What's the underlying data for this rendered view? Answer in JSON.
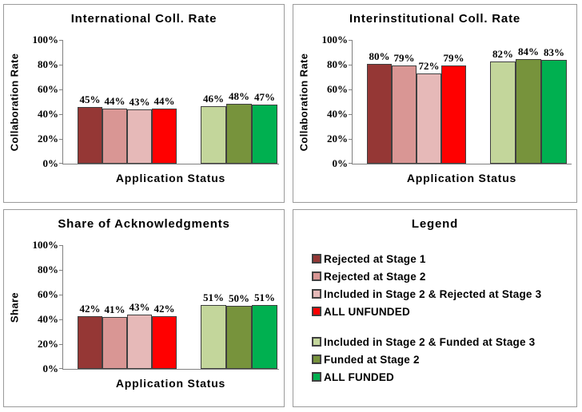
{
  "figure": {
    "background": "#FFFFFF",
    "panel_border_color": "#9B9B9B",
    "axis_color": "#808080",
    "bar_border_color": "#3F3F3F"
  },
  "legend": {
    "title": "Legend",
    "items": [
      {
        "label": "Rejected at Stage 1",
        "color": "#953735",
        "group": "unfunded"
      },
      {
        "label": "Rejected at Stage 2",
        "color": "#D99694",
        "group": "unfunded"
      },
      {
        "label": "Included in Stage 2 & Rejected at Stage 3",
        "color": "#E6B9B8",
        "group": "unfunded"
      },
      {
        "label": "ALL UNFUNDED",
        "color": "#FF0000",
        "group": "unfunded"
      },
      {
        "label": "Included in Stage 2 & Funded at Stage 3",
        "color": "#C3D69B",
        "group": "funded"
      },
      {
        "label": "Funded at Stage 2",
        "color": "#77933C",
        "group": "funded"
      },
      {
        "label": "ALL FUNDED",
        "color": "#00B050",
        "group": "funded"
      }
    ]
  },
  "chart_data": [
    {
      "type": "bar",
      "title": "International Coll. Rate",
      "xlabel": "Application Status",
      "ylabel": "Collaboration Rate",
      "ylim": [
        0,
        100
      ],
      "ytick_step": 20,
      "ytick_labels": [
        "0%",
        "20%",
        "40%",
        "60%",
        "80%",
        "100%"
      ],
      "grid": false,
      "legend_position": "separate-panel",
      "series": [
        {
          "name": "Rejected at Stage 1",
          "group": "unfunded",
          "color": "#953735",
          "value": 45
        },
        {
          "name": "Rejected at Stage 2",
          "group": "unfunded",
          "color": "#D99694",
          "value": 44
        },
        {
          "name": "Included in Stage 2 & Rejected at Stage 3",
          "group": "unfunded",
          "color": "#E6B9B8",
          "value": 43
        },
        {
          "name": "ALL UNFUNDED",
          "group": "unfunded",
          "color": "#FF0000",
          "value": 44
        },
        {
          "name": "Included in Stage 2 & Funded at Stage 3",
          "group": "funded",
          "color": "#C3D69B",
          "value": 46
        },
        {
          "name": "Funded at Stage 2",
          "group": "funded",
          "color": "#77933C",
          "value": 48
        },
        {
          "name": "ALL FUNDED",
          "group": "funded",
          "color": "#00B050",
          "value": 47
        }
      ]
    },
    {
      "type": "bar",
      "title": "Interinstitutional Coll. Rate",
      "xlabel": "Application Status",
      "ylabel": "Collaboration Rate",
      "ylim": [
        0,
        100
      ],
      "ytick_step": 20,
      "ytick_labels": [
        "0%",
        "20%",
        "40%",
        "60%",
        "80%",
        "100%"
      ],
      "grid": false,
      "legend_position": "separate-panel",
      "series": [
        {
          "name": "Rejected at Stage 1",
          "group": "unfunded",
          "color": "#953735",
          "value": 80
        },
        {
          "name": "Rejected at Stage 2",
          "group": "unfunded",
          "color": "#D99694",
          "value": 79
        },
        {
          "name": "Included in Stage 2 & Rejected at Stage 3",
          "group": "unfunded",
          "color": "#E6B9B8",
          "value": 72
        },
        {
          "name": "ALL UNFUNDED",
          "group": "unfunded",
          "color": "#FF0000",
          "value": 79
        },
        {
          "name": "Included in Stage 2 & Funded at Stage 3",
          "group": "funded",
          "color": "#C3D69B",
          "value": 82
        },
        {
          "name": "Funded at Stage 2",
          "group": "funded",
          "color": "#77933C",
          "value": 84
        },
        {
          "name": "ALL FUNDED",
          "group": "funded",
          "color": "#00B050",
          "value": 83
        }
      ]
    },
    {
      "type": "bar",
      "title": "Share of Acknowledgments",
      "xlabel": "Application Status",
      "ylabel": "Share",
      "ylim": [
        0,
        100
      ],
      "ytick_step": 20,
      "ytick_labels": [
        "0%",
        "20%",
        "40%",
        "60%",
        "80%",
        "100%"
      ],
      "grid": false,
      "legend_position": "separate-panel",
      "series": [
        {
          "name": "Rejected at Stage 1",
          "group": "unfunded",
          "color": "#953735",
          "value": 42
        },
        {
          "name": "Rejected at Stage 2",
          "group": "unfunded",
          "color": "#D99694",
          "value": 41
        },
        {
          "name": "Included in Stage 2 & Rejected at Stage 3",
          "group": "unfunded",
          "color": "#E6B9B8",
          "value": 43
        },
        {
          "name": "ALL UNFUNDED",
          "group": "unfunded",
          "color": "#FF0000",
          "value": 42
        },
        {
          "name": "Included in Stage 2 & Funded at Stage 3",
          "group": "funded",
          "color": "#C3D69B",
          "value": 51
        },
        {
          "name": "Funded at Stage 2",
          "group": "funded",
          "color": "#77933C",
          "value": 50
        },
        {
          "name": "ALL FUNDED",
          "group": "funded",
          "color": "#00B050",
          "value": 51
        }
      ]
    }
  ]
}
